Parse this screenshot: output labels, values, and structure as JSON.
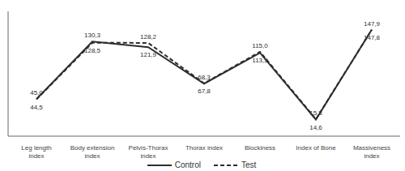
{
  "chart_data": {
    "type": "line",
    "categories": [
      "Leg length\nindex",
      "Body extension\nindex",
      "Pelvis-Thorax\nindex",
      "Thorax index",
      "Blockiness",
      "Index of Bone",
      "Massiveness\nindex"
    ],
    "series": [
      {
        "name": "Control",
        "color": "#2d2d2d",
        "line_style": "solid",
        "values": [
          45.0,
          130.3,
          121.9,
          67.8,
          113.5,
          14.6,
          147.9
        ],
        "value_labels": [
          "45,0",
          "130,3",
          "121,9",
          "67,8",
          "113,5",
          "14,6",
          "147,9"
        ]
      },
      {
        "name": "Test",
        "color": "#2d2d2d",
        "line_style": "dashed",
        "values": [
          44.5,
          128.5,
          128.2,
          68.3,
          115.0,
          15.3,
          147.8
        ],
        "value_labels": [
          "44,5",
          "128,5",
          "128,2",
          "68,3",
          "115,0",
          "15,3",
          "147,8"
        ]
      }
    ],
    "ylim": [
      -10,
      175
    ],
    "data_labels": true,
    "tick_labels": "x",
    "legend": "bottom"
  }
}
